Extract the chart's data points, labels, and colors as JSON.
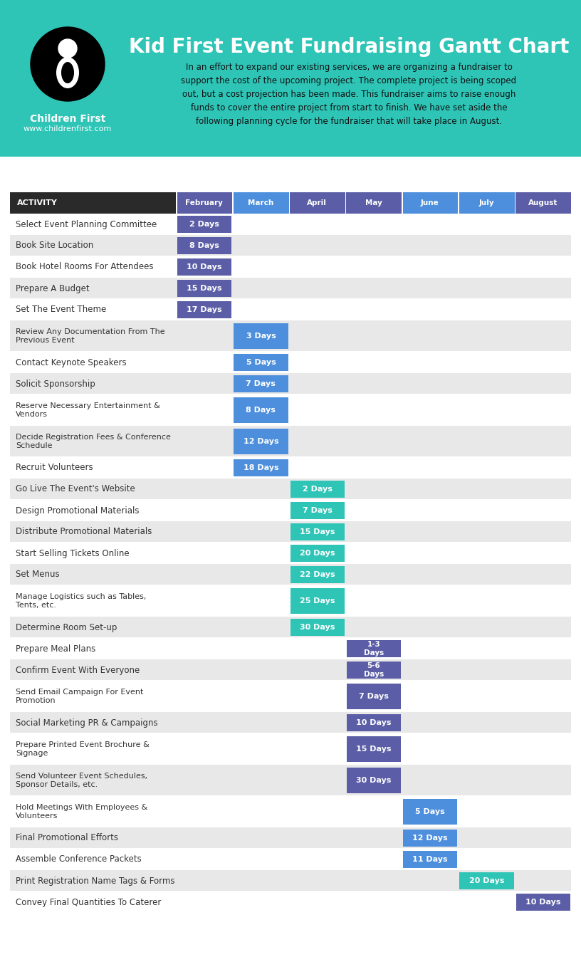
{
  "title": "Kid First Event Fundraising Gantt Chart",
  "subtitle": "In an effort to expand our existing services, we are organizing a fundraiser to\nsupport the cost of the upcoming project. The complete project is being scoped\nout, but a cost projection has been made. This fundraiser aims to raise enough\nfunds to cover the entire project from start to finish. We have set aside the\nfollowing planning cycle for the fundraiser that will take place in August.",
  "org_name": "Children First",
  "org_url": "www.childrenfirst.com",
  "header_bg": "#2ec4b6",
  "months": [
    "February",
    "March",
    "April",
    "May",
    "June",
    "July",
    "August"
  ],
  "month_colors": [
    "#5b5ea6",
    "#4d8fdc",
    "#5b5ea6",
    "#5b5ea6",
    "#4d8fdc",
    "#4d8fdc",
    "#5b5ea6"
  ],
  "activities": [
    {
      "name": "Select Event Planning Committee",
      "month": 0,
      "label": "2 Days",
      "color": "#5b5ea6",
      "multiline": false
    },
    {
      "name": "Book Site Location",
      "month": 0,
      "label": "8 Days",
      "color": "#5b5ea6",
      "multiline": false
    },
    {
      "name": "Book Hotel Rooms For Attendees",
      "month": 0,
      "label": "10 Days",
      "color": "#5b5ea6",
      "multiline": false
    },
    {
      "name": "Prepare A Budget",
      "month": 0,
      "label": "15 Days",
      "color": "#5b5ea6",
      "multiline": false
    },
    {
      "name": "Set The Event Theme",
      "month": 0,
      "label": "17 Days",
      "color": "#5b5ea6",
      "multiline": false
    },
    {
      "name": "Review Any Documentation From The\nPrevious Event",
      "month": 1,
      "label": "3 Days",
      "color": "#4d8fdc",
      "multiline": true
    },
    {
      "name": "Contact Keynote Speakers",
      "month": 1,
      "label": "5 Days",
      "color": "#4d8fdc",
      "multiline": false
    },
    {
      "name": "Solicit Sponsorship",
      "month": 1,
      "label": "7 Days",
      "color": "#4d8fdc",
      "multiline": false
    },
    {
      "name": "Reserve Necessary Entertainment &\nVendors",
      "month": 1,
      "label": "8 Days",
      "color": "#4d8fdc",
      "multiline": true
    },
    {
      "name": "Decide Registration Fees & Conference\nSchedule",
      "month": 1,
      "label": "12 Days",
      "color": "#4d8fdc",
      "multiline": true
    },
    {
      "name": "Recruit Volunteers",
      "month": 1,
      "label": "18 Days",
      "color": "#4d8fdc",
      "multiline": false
    },
    {
      "name": "Go Live The Event's Website",
      "month": 2,
      "label": "2 Days",
      "color": "#2ec4b6",
      "multiline": false
    },
    {
      "name": "Design Promotional Materials",
      "month": 2,
      "label": "7 Days",
      "color": "#2ec4b6",
      "multiline": false
    },
    {
      "name": "Distribute Promotional Materials",
      "month": 2,
      "label": "15 Days",
      "color": "#2ec4b6",
      "multiline": false
    },
    {
      "name": "Start Selling Tickets Online",
      "month": 2,
      "label": "20 Days",
      "color": "#2ec4b6",
      "multiline": false
    },
    {
      "name": "Set Menus",
      "month": 2,
      "label": "22 Days",
      "color": "#2ec4b6",
      "multiline": false
    },
    {
      "name": "Manage Logistics such as Tables,\nTents, etc.",
      "month": 2,
      "label": "25 Days",
      "color": "#2ec4b6",
      "multiline": true
    },
    {
      "name": "Determine Room Set-up",
      "month": 2,
      "label": "30 Days",
      "color": "#2ec4b6",
      "multiline": false
    },
    {
      "name": "Prepare Meal Plans",
      "month": 3,
      "label": "1-3\nDays",
      "color": "#5b5ea6",
      "multiline": false
    },
    {
      "name": "Confirm Event With Everyone",
      "month": 3,
      "label": "5-6\nDays",
      "color": "#5b5ea6",
      "multiline": false
    },
    {
      "name": "Send Email Campaign For Event\nPromotion",
      "month": 3,
      "label": "7 Days",
      "color": "#5b5ea6",
      "multiline": true
    },
    {
      "name": "Social Marketing PR & Campaigns",
      "month": 3,
      "label": "10 Days",
      "color": "#5b5ea6",
      "multiline": false
    },
    {
      "name": "Prepare Printed Event Brochure &\nSignage",
      "month": 3,
      "label": "15 Days",
      "color": "#5b5ea6",
      "multiline": true
    },
    {
      "name": "Send Volunteer Event Schedules,\nSponsor Details, etc.",
      "month": 3,
      "label": "30 Days",
      "color": "#5b5ea6",
      "multiline": true
    },
    {
      "name": "Hold Meetings With Employees &\nVolunteers",
      "month": 4,
      "label": "5 Days",
      "color": "#4d8fdc",
      "multiline": true
    },
    {
      "name": "Final Promotional Efforts",
      "month": 4,
      "label": "12 Days",
      "color": "#4d8fdc",
      "multiline": false
    },
    {
      "name": "Assemble Conference Packets",
      "month": 4,
      "label": "11 Days",
      "color": "#4d8fdc",
      "multiline": false
    },
    {
      "name": "Print Registration Name Tags & Forms",
      "month": 5,
      "label": "20 Days",
      "color": "#2ec4b6",
      "multiline": false
    },
    {
      "name": "Convey Final Quantities To Caterer",
      "month": 6,
      "label": "10 Days",
      "color": "#5b5ea6",
      "multiline": false
    }
  ],
  "table_bg_colors": [
    "#ffffff",
    "#e8e8e8"
  ],
  "header_row_bg": "#2a2a2a",
  "header_text_color": "#ffffff",
  "activity_text_color": "#333333",
  "bar_text_color": "#ffffff"
}
